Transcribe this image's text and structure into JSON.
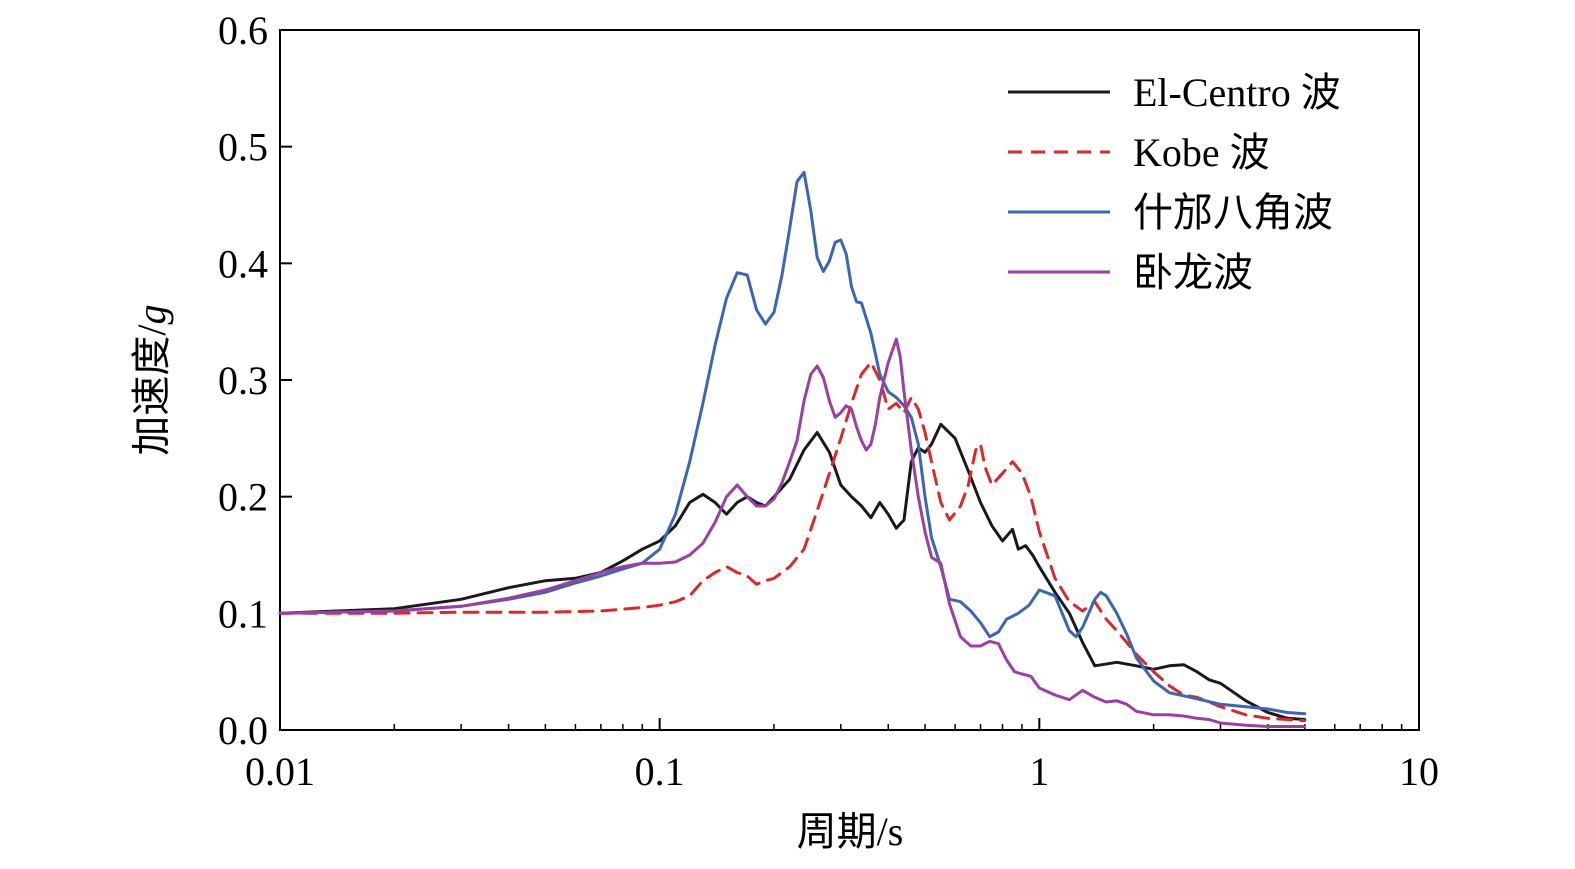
{
  "chart_data": {
    "type": "line",
    "title": "",
    "xlabel": "周期/s",
    "ylabel_main": "加速度/",
    "ylabel_unit": "g",
    "xscale": "log",
    "xlim": [
      0.01,
      10
    ],
    "ylim": [
      0.0,
      0.6
    ],
    "grid": false,
    "legend_position": "top-right",
    "x_ticks": [
      {
        "value": 0.01,
        "label": "0.01"
      },
      {
        "value": 0.1,
        "label": "0.1"
      },
      {
        "value": 1,
        "label": "1"
      },
      {
        "value": 10,
        "label": "10"
      }
    ],
    "y_ticks": [
      {
        "value": 0.0,
        "label": "0.0"
      },
      {
        "value": 0.1,
        "label": "0.1"
      },
      {
        "value": 0.2,
        "label": "0.2"
      },
      {
        "value": 0.3,
        "label": "0.3"
      },
      {
        "value": 0.4,
        "label": "0.4"
      },
      {
        "value": 0.5,
        "label": "0.5"
      },
      {
        "value": 0.6,
        "label": "0.6"
      }
    ],
    "series": [
      {
        "name": "El-Centro 波",
        "color": "#1a1a1a",
        "dash": "solid",
        "points": [
          [
            0.01,
            0.1
          ],
          [
            0.02,
            0.104
          ],
          [
            0.03,
            0.112
          ],
          [
            0.04,
            0.122
          ],
          [
            0.05,
            0.128
          ],
          [
            0.06,
            0.13
          ],
          [
            0.07,
            0.135
          ],
          [
            0.08,
            0.145
          ],
          [
            0.09,
            0.155
          ],
          [
            0.1,
            0.162
          ],
          [
            0.11,
            0.175
          ],
          [
            0.12,
            0.195
          ],
          [
            0.13,
            0.202
          ],
          [
            0.14,
            0.195
          ],
          [
            0.15,
            0.185
          ],
          [
            0.16,
            0.195
          ],
          [
            0.17,
            0.2
          ],
          [
            0.18,
            0.195
          ],
          [
            0.19,
            0.192
          ],
          [
            0.2,
            0.2
          ],
          [
            0.22,
            0.215
          ],
          [
            0.24,
            0.24
          ],
          [
            0.26,
            0.255
          ],
          [
            0.28,
            0.238
          ],
          [
            0.3,
            0.21
          ],
          [
            0.32,
            0.2
          ],
          [
            0.34,
            0.192
          ],
          [
            0.36,
            0.182
          ],
          [
            0.38,
            0.195
          ],
          [
            0.4,
            0.185
          ],
          [
            0.42,
            0.173
          ],
          [
            0.44,
            0.18
          ],
          [
            0.46,
            0.23
          ],
          [
            0.48,
            0.242
          ],
          [
            0.5,
            0.238
          ],
          [
            0.52,
            0.245
          ],
          [
            0.55,
            0.262
          ],
          [
            0.6,
            0.25
          ],
          [
            0.65,
            0.222
          ],
          [
            0.7,
            0.195
          ],
          [
            0.75,
            0.175
          ],
          [
            0.8,
            0.162
          ],
          [
            0.85,
            0.172
          ],
          [
            0.88,
            0.155
          ],
          [
            0.92,
            0.158
          ],
          [
            0.96,
            0.15
          ],
          [
            1.0,
            0.14
          ],
          [
            1.1,
            0.118
          ],
          [
            1.2,
            0.1
          ],
          [
            1.3,
            0.075
          ],
          [
            1.4,
            0.055
          ],
          [
            1.6,
            0.058
          ],
          [
            1.8,
            0.055
          ],
          [
            2.0,
            0.052
          ],
          [
            2.2,
            0.055
          ],
          [
            2.4,
            0.056
          ],
          [
            2.6,
            0.05
          ],
          [
            2.8,
            0.043
          ],
          [
            3.0,
            0.04
          ],
          [
            3.5,
            0.025
          ],
          [
            4.0,
            0.015
          ],
          [
            4.5,
            0.01
          ],
          [
            5.0,
            0.009
          ]
        ]
      },
      {
        "name": "Kobe 波",
        "color": "#e02727",
        "dash": "dashed",
        "points": [
          [
            0.01,
            0.1
          ],
          [
            0.02,
            0.1
          ],
          [
            0.03,
            0.101
          ],
          [
            0.05,
            0.101
          ],
          [
            0.07,
            0.102
          ],
          [
            0.09,
            0.105
          ],
          [
            0.1,
            0.107
          ],
          [
            0.11,
            0.11
          ],
          [
            0.12,
            0.115
          ],
          [
            0.13,
            0.128
          ],
          [
            0.14,
            0.135
          ],
          [
            0.15,
            0.14
          ],
          [
            0.16,
            0.135
          ],
          [
            0.17,
            0.132
          ],
          [
            0.18,
            0.125
          ],
          [
            0.19,
            0.128
          ],
          [
            0.2,
            0.13
          ],
          [
            0.22,
            0.14
          ],
          [
            0.24,
            0.155
          ],
          [
            0.26,
            0.188
          ],
          [
            0.28,
            0.22
          ],
          [
            0.3,
            0.25
          ],
          [
            0.32,
            0.28
          ],
          [
            0.34,
            0.305
          ],
          [
            0.36,
            0.315
          ],
          [
            0.38,
            0.3
          ],
          [
            0.4,
            0.275
          ],
          [
            0.42,
            0.28
          ],
          [
            0.44,
            0.272
          ],
          [
            0.46,
            0.285
          ],
          [
            0.48,
            0.275
          ],
          [
            0.5,
            0.255
          ],
          [
            0.52,
            0.23
          ],
          [
            0.55,
            0.195
          ],
          [
            0.58,
            0.18
          ],
          [
            0.62,
            0.192
          ],
          [
            0.65,
            0.21
          ],
          [
            0.68,
            0.24
          ],
          [
            0.7,
            0.245
          ],
          [
            0.72,
            0.225
          ],
          [
            0.75,
            0.21
          ],
          [
            0.8,
            0.22
          ],
          [
            0.85,
            0.23
          ],
          [
            0.9,
            0.22
          ],
          [
            0.95,
            0.2
          ],
          [
            1.0,
            0.17
          ],
          [
            1.1,
            0.13
          ],
          [
            1.2,
            0.11
          ],
          [
            1.3,
            0.102
          ],
          [
            1.4,
            0.11
          ],
          [
            1.5,
            0.095
          ],
          [
            1.6,
            0.085
          ],
          [
            1.7,
            0.075
          ],
          [
            1.8,
            0.065
          ],
          [
            2.0,
            0.05
          ],
          [
            2.2,
            0.038
          ],
          [
            2.4,
            0.03
          ],
          [
            2.6,
            0.028
          ],
          [
            2.8,
            0.024
          ],
          [
            3.0,
            0.02
          ],
          [
            3.5,
            0.013
          ],
          [
            4.0,
            0.01
          ],
          [
            4.5,
            0.009
          ],
          [
            5.0,
            0.008
          ]
        ]
      },
      {
        "name": "什邡八角波",
        "color": "#3a66b8",
        "dash": "solid",
        "points": [
          [
            0.01,
            0.1
          ],
          [
            0.02,
            0.102
          ],
          [
            0.03,
            0.106
          ],
          [
            0.04,
            0.112
          ],
          [
            0.05,
            0.118
          ],
          [
            0.06,
            0.126
          ],
          [
            0.07,
            0.132
          ],
          [
            0.08,
            0.138
          ],
          [
            0.09,
            0.143
          ],
          [
            0.1,
            0.155
          ],
          [
            0.11,
            0.185
          ],
          [
            0.12,
            0.23
          ],
          [
            0.13,
            0.28
          ],
          [
            0.14,
            0.33
          ],
          [
            0.15,
            0.37
          ],
          [
            0.16,
            0.392
          ],
          [
            0.17,
            0.39
          ],
          [
            0.18,
            0.36
          ],
          [
            0.19,
            0.348
          ],
          [
            0.2,
            0.358
          ],
          [
            0.21,
            0.39
          ],
          [
            0.22,
            0.43
          ],
          [
            0.23,
            0.47
          ],
          [
            0.24,
            0.478
          ],
          [
            0.25,
            0.445
          ],
          [
            0.26,
            0.405
          ],
          [
            0.27,
            0.393
          ],
          [
            0.28,
            0.402
          ],
          [
            0.29,
            0.418
          ],
          [
            0.3,
            0.42
          ],
          [
            0.31,
            0.408
          ],
          [
            0.32,
            0.38
          ],
          [
            0.33,
            0.367
          ],
          [
            0.34,
            0.366
          ],
          [
            0.36,
            0.34
          ],
          [
            0.38,
            0.305
          ],
          [
            0.4,
            0.29
          ],
          [
            0.42,
            0.285
          ],
          [
            0.44,
            0.278
          ],
          [
            0.46,
            0.268
          ],
          [
            0.48,
            0.245
          ],
          [
            0.5,
            0.2
          ],
          [
            0.52,
            0.165
          ],
          [
            0.55,
            0.14
          ],
          [
            0.58,
            0.112
          ],
          [
            0.62,
            0.11
          ],
          [
            0.66,
            0.102
          ],
          [
            0.7,
            0.092
          ],
          [
            0.74,
            0.08
          ],
          [
            0.78,
            0.084
          ],
          [
            0.82,
            0.095
          ],
          [
            0.88,
            0.1
          ],
          [
            0.94,
            0.107
          ],
          [
            1.0,
            0.12
          ],
          [
            1.1,
            0.115
          ],
          [
            1.2,
            0.085
          ],
          [
            1.25,
            0.08
          ],
          [
            1.3,
            0.088
          ],
          [
            1.4,
            0.112
          ],
          [
            1.45,
            0.118
          ],
          [
            1.5,
            0.115
          ],
          [
            1.6,
            0.1
          ],
          [
            1.7,
            0.082
          ],
          [
            1.8,
            0.062
          ],
          [
            2.0,
            0.042
          ],
          [
            2.2,
            0.032
          ],
          [
            2.5,
            0.028
          ],
          [
            3.0,
            0.022
          ],
          [
            3.5,
            0.02
          ],
          [
            4.0,
            0.018
          ],
          [
            4.5,
            0.015
          ],
          [
            5.0,
            0.014
          ]
        ]
      },
      {
        "name": "卧龙波",
        "color": "#9b3fa4",
        "dash": "solid",
        "points": [
          [
            0.01,
            0.1
          ],
          [
            0.02,
            0.102
          ],
          [
            0.03,
            0.106
          ],
          [
            0.04,
            0.113
          ],
          [
            0.05,
            0.12
          ],
          [
            0.06,
            0.128
          ],
          [
            0.07,
            0.135
          ],
          [
            0.08,
            0.14
          ],
          [
            0.09,
            0.143
          ],
          [
            0.1,
            0.143
          ],
          [
            0.11,
            0.144
          ],
          [
            0.12,
            0.15
          ],
          [
            0.13,
            0.16
          ],
          [
            0.14,
            0.178
          ],
          [
            0.15,
            0.2
          ],
          [
            0.16,
            0.21
          ],
          [
            0.17,
            0.2
          ],
          [
            0.18,
            0.192
          ],
          [
            0.19,
            0.192
          ],
          [
            0.2,
            0.198
          ],
          [
            0.21,
            0.212
          ],
          [
            0.22,
            0.23
          ],
          [
            0.23,
            0.248
          ],
          [
            0.24,
            0.282
          ],
          [
            0.25,
            0.305
          ],
          [
            0.26,
            0.312
          ],
          [
            0.27,
            0.302
          ],
          [
            0.28,
            0.282
          ],
          [
            0.29,
            0.268
          ],
          [
            0.3,
            0.272
          ],
          [
            0.31,
            0.278
          ],
          [
            0.32,
            0.275
          ],
          [
            0.33,
            0.26
          ],
          [
            0.34,
            0.248
          ],
          [
            0.35,
            0.24
          ],
          [
            0.36,
            0.245
          ],
          [
            0.37,
            0.262
          ],
          [
            0.38,
            0.285
          ],
          [
            0.4,
            0.315
          ],
          [
            0.42,
            0.335
          ],
          [
            0.43,
            0.32
          ],
          [
            0.44,
            0.29
          ],
          [
            0.46,
            0.24
          ],
          [
            0.48,
            0.2
          ],
          [
            0.5,
            0.17
          ],
          [
            0.52,
            0.148
          ],
          [
            0.55,
            0.143
          ],
          [
            0.58,
            0.108
          ],
          [
            0.62,
            0.08
          ],
          [
            0.66,
            0.072
          ],
          [
            0.7,
            0.072
          ],
          [
            0.74,
            0.076
          ],
          [
            0.78,
            0.074
          ],
          [
            0.82,
            0.06
          ],
          [
            0.86,
            0.05
          ],
          [
            0.9,
            0.048
          ],
          [
            0.95,
            0.046
          ],
          [
            1.0,
            0.036
          ],
          [
            1.1,
            0.03
          ],
          [
            1.2,
            0.026
          ],
          [
            1.3,
            0.034
          ],
          [
            1.4,
            0.028
          ],
          [
            1.5,
            0.024
          ],
          [
            1.6,
            0.025
          ],
          [
            1.7,
            0.022
          ],
          [
            1.8,
            0.016
          ],
          [
            2.0,
            0.013
          ],
          [
            2.2,
            0.013
          ],
          [
            2.4,
            0.012
          ],
          [
            2.6,
            0.01
          ],
          [
            2.8,
            0.009
          ],
          [
            3.0,
            0.006
          ],
          [
            3.5,
            0.004
          ],
          [
            4.0,
            0.003
          ],
          [
            4.5,
            0.003
          ],
          [
            5.0,
            0.003
          ]
        ]
      }
    ]
  }
}
